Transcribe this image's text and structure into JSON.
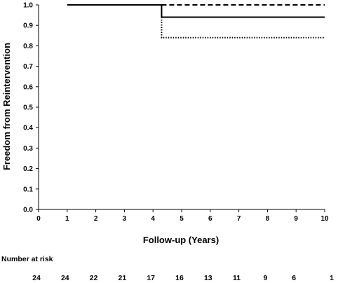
{
  "chart_data": {
    "type": "line",
    "subtype": "kaplan-meier step",
    "title": "",
    "xlabel": "Follow-up (Years)",
    "ylabel": "Freedom from Reintervention",
    "xlim": [
      0,
      10
    ],
    "ylim": [
      0.0,
      1.0
    ],
    "x_ticks": [
      "0",
      "1",
      "2",
      "3",
      "4",
      "5",
      "6",
      "7",
      "8",
      "9",
      "10"
    ],
    "y_ticks": [
      "0.0",
      "0.1",
      "0.2",
      "0.3",
      "0.4",
      "0.5",
      "0.6",
      "0.7",
      "0.8",
      "0.9",
      "1.0"
    ],
    "grid": false,
    "legend": "none",
    "series": [
      {
        "style": "solid",
        "color": "#000000",
        "x": [
          1,
          4.3,
          4.3,
          10
        ],
        "y": [
          1.0,
          1.0,
          0.94,
          0.94
        ]
      },
      {
        "style": "dashed",
        "color": "#000000",
        "x": [
          4.3,
          10
        ],
        "y": [
          1.0,
          1.0
        ]
      },
      {
        "style": "dotted",
        "color": "#000000",
        "x": [
          4.3,
          4.3,
          10
        ],
        "y": [
          1.0,
          0.84,
          0.84
        ]
      }
    ],
    "number_at_risk": {
      "label": "Number at risk",
      "values": [
        "24",
        "24",
        "22",
        "21",
        "17",
        "16",
        "13",
        "11",
        "9",
        "6",
        "1"
      ]
    }
  }
}
